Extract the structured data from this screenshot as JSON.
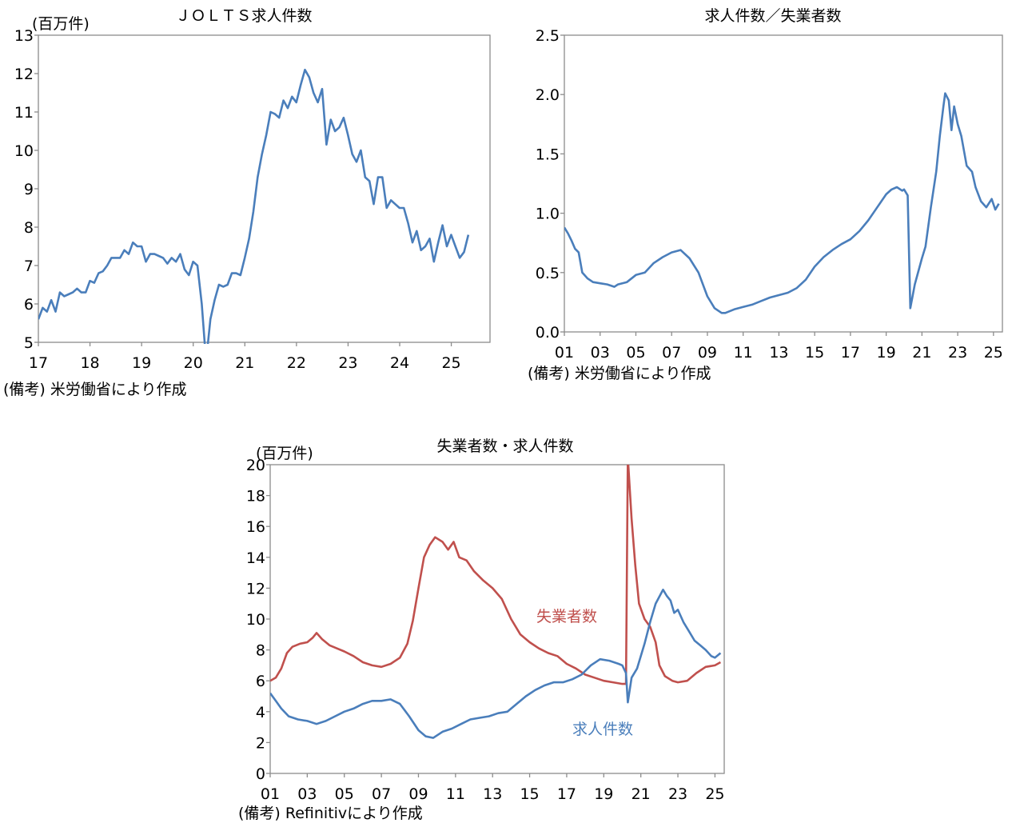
{
  "chart_data": [
    {
      "id": "jolts",
      "type": "line",
      "title": "ＪＯＬＴＳ求人件数",
      "unit_label": "(百万件)",
      "note": "(備考) 米労働省により作成",
      "x_tick_labels": [
        "17",
        "18",
        "19",
        "20",
        "21",
        "22",
        "23",
        "24",
        "25"
      ],
      "y_tick_labels": [
        "5",
        "6",
        "7",
        "8",
        "9",
        "10",
        "11",
        "12",
        "13"
      ],
      "ylim": [
        5,
        13
      ],
      "xlim": [
        2017.0,
        2025.75
      ],
      "color": "#4a7ebb",
      "series": [
        {
          "x_start": 2017.0,
          "x_step": 0.0833,
          "values": [
            5.6,
            5.9,
            5.8,
            6.1,
            5.8,
            6.3,
            6.2,
            6.25,
            6.3,
            6.4,
            6.3,
            6.3,
            6.6,
            6.55,
            6.8,
            6.85,
            7.0,
            7.2,
            7.2,
            7.2,
            7.4,
            7.3,
            7.6,
            7.5,
            7.5,
            7.1,
            7.3,
            7.3,
            7.25,
            7.2,
            7.05,
            7.2,
            7.1,
            7.3,
            6.9,
            6.75,
            7.1,
            7.0,
            6.0,
            4.5,
            5.6,
            6.1,
            6.5,
            6.45,
            6.5,
            6.8,
            6.8,
            6.75,
            7.2,
            7.7,
            8.4,
            9.3,
            9.9,
            10.4,
            11.0,
            10.95,
            10.85,
            11.3,
            11.1,
            11.4,
            11.25,
            11.7,
            12.1,
            11.9,
            11.5,
            11.25,
            11.6,
            10.15,
            10.8,
            10.5,
            10.6,
            10.85,
            10.4,
            9.9,
            9.7,
            10.0,
            9.3,
            9.2,
            8.6,
            9.3,
            9.3,
            8.5,
            8.7,
            8.6,
            8.5,
            8.5,
            8.1,
            7.6,
            7.9,
            7.4,
            7.5,
            7.7,
            7.1,
            7.6,
            8.05,
            7.5,
            7.8,
            7.5,
            7.2,
            7.35,
            7.8
          ]
        }
      ]
    },
    {
      "id": "ratio",
      "type": "line",
      "title": "求人件数／失業者数",
      "note": "(備考) 米労働省により作成",
      "x_tick_labels": [
        "01",
        "03",
        "05",
        "07",
        "09",
        "11",
        "13",
        "15",
        "17",
        "19",
        "21",
        "23",
        "25"
      ],
      "y_tick_labels": [
        "0.0",
        "0.5",
        "1.0",
        "1.5",
        "2.0",
        "2.5"
      ],
      "ylim": [
        0,
        2.5
      ],
      "xlim": [
        2001.0,
        2025.5
      ],
      "color": "#4a7ebb",
      "series": [
        {
          "points": [
            [
              2001.0,
              0.88
            ],
            [
              2001.2,
              0.83
            ],
            [
              2001.4,
              0.77
            ],
            [
              2001.6,
              0.7
            ],
            [
              2001.8,
              0.67
            ],
            [
              2002.0,
              0.5
            ],
            [
              2002.3,
              0.45
            ],
            [
              2002.6,
              0.42
            ],
            [
              2003.0,
              0.41
            ],
            [
              2003.4,
              0.4
            ],
            [
              2003.8,
              0.38
            ],
            [
              2004.0,
              0.4
            ],
            [
              2004.5,
              0.42
            ],
            [
              2005.0,
              0.48
            ],
            [
              2005.5,
              0.5
            ],
            [
              2006.0,
              0.58
            ],
            [
              2006.5,
              0.63
            ],
            [
              2007.0,
              0.67
            ],
            [
              2007.5,
              0.69
            ],
            [
              2008.0,
              0.62
            ],
            [
              2008.5,
              0.5
            ],
            [
              2009.0,
              0.3
            ],
            [
              2009.4,
              0.2
            ],
            [
              2009.8,
              0.16
            ],
            [
              2010.0,
              0.16
            ],
            [
              2010.5,
              0.19
            ],
            [
              2011.0,
              0.21
            ],
            [
              2011.5,
              0.23
            ],
            [
              2012.0,
              0.26
            ],
            [
              2012.5,
              0.29
            ],
            [
              2013.0,
              0.31
            ],
            [
              2013.5,
              0.33
            ],
            [
              2014.0,
              0.37
            ],
            [
              2014.5,
              0.44
            ],
            [
              2015.0,
              0.55
            ],
            [
              2015.5,
              0.63
            ],
            [
              2016.0,
              0.69
            ],
            [
              2016.5,
              0.74
            ],
            [
              2017.0,
              0.78
            ],
            [
              2017.5,
              0.85
            ],
            [
              2018.0,
              0.94
            ],
            [
              2018.5,
              1.05
            ],
            [
              2019.0,
              1.16
            ],
            [
              2019.3,
              1.2
            ],
            [
              2019.6,
              1.22
            ],
            [
              2019.9,
              1.19
            ],
            [
              2020.0,
              1.2
            ],
            [
              2020.2,
              1.15
            ],
            [
              2020.35,
              0.2
            ],
            [
              2020.6,
              0.4
            ],
            [
              2021.0,
              0.62
            ],
            [
              2021.2,
              0.72
            ],
            [
              2021.5,
              1.05
            ],
            [
              2021.8,
              1.35
            ],
            [
              2022.0,
              1.65
            ],
            [
              2022.2,
              1.9
            ],
            [
              2022.3,
              2.01
            ],
            [
              2022.5,
              1.95
            ],
            [
              2022.65,
              1.7
            ],
            [
              2022.8,
              1.9
            ],
            [
              2023.0,
              1.75
            ],
            [
              2023.2,
              1.65
            ],
            [
              2023.5,
              1.4
            ],
            [
              2023.8,
              1.35
            ],
            [
              2024.0,
              1.22
            ],
            [
              2024.3,
              1.1
            ],
            [
              2024.6,
              1.05
            ],
            [
              2024.9,
              1.12
            ],
            [
              2025.1,
              1.03
            ],
            [
              2025.3,
              1.08
            ]
          ]
        }
      ]
    },
    {
      "id": "unemp-openings",
      "type": "line",
      "title": "失業者数・求人件数",
      "unit_label": "(百万件)",
      "note": "(備考) Refinitivにより作成",
      "x_tick_labels": [
        "01",
        "03",
        "05",
        "07",
        "09",
        "11",
        "13",
        "15",
        "17",
        "19",
        "21",
        "23",
        "25"
      ],
      "y_tick_labels": [
        "0",
        "2",
        "4",
        "6",
        "8",
        "10",
        "12",
        "14",
        "16",
        "18",
        "20"
      ],
      "ylim": [
        0,
        20
      ],
      "xlim": [
        2001.0,
        2025.5
      ],
      "series": [
        {
          "name": "失業者数",
          "color": "#c0504d",
          "points": [
            [
              2001.0,
              6.0
            ],
            [
              2001.3,
              6.2
            ],
            [
              2001.6,
              6.8
            ],
            [
              2001.9,
              7.8
            ],
            [
              2002.2,
              8.2
            ],
            [
              2002.6,
              8.4
            ],
            [
              2003.0,
              8.5
            ],
            [
              2003.3,
              8.8
            ],
            [
              2003.5,
              9.1
            ],
            [
              2003.8,
              8.7
            ],
            [
              2004.2,
              8.3
            ],
            [
              2004.6,
              8.1
            ],
            [
              2005.0,
              7.9
            ],
            [
              2005.5,
              7.6
            ],
            [
              2006.0,
              7.2
            ],
            [
              2006.5,
              7.0
            ],
            [
              2007.0,
              6.9
            ],
            [
              2007.5,
              7.1
            ],
            [
              2008.0,
              7.5
            ],
            [
              2008.4,
              8.4
            ],
            [
              2008.7,
              9.9
            ],
            [
              2009.0,
              12.0
            ],
            [
              2009.3,
              14.0
            ],
            [
              2009.6,
              14.8
            ],
            [
              2009.9,
              15.3
            ],
            [
              2010.3,
              15.0
            ],
            [
              2010.6,
              14.5
            ],
            [
              2010.9,
              15.0
            ],
            [
              2011.2,
              14.0
            ],
            [
              2011.6,
              13.8
            ],
            [
              2012.0,
              13.1
            ],
            [
              2012.5,
              12.5
            ],
            [
              2013.0,
              12.0
            ],
            [
              2013.5,
              11.3
            ],
            [
              2014.0,
              10.0
            ],
            [
              2014.5,
              9.0
            ],
            [
              2015.0,
              8.5
            ],
            [
              2015.5,
              8.1
            ],
            [
              2016.0,
              7.8
            ],
            [
              2016.5,
              7.6
            ],
            [
              2017.0,
              7.1
            ],
            [
              2017.5,
              6.8
            ],
            [
              2018.0,
              6.4
            ],
            [
              2018.5,
              6.2
            ],
            [
              2019.0,
              6.0
            ],
            [
              2019.5,
              5.9
            ],
            [
              2020.0,
              5.8
            ],
            [
              2020.2,
              5.8
            ],
            [
              2020.3,
              20.5
            ],
            [
              2020.5,
              16.5
            ],
            [
              2020.7,
              13.5
            ],
            [
              2020.9,
              11.0
            ],
            [
              2021.2,
              10.0
            ],
            [
              2021.5,
              9.5
            ],
            [
              2021.8,
              8.5
            ],
            [
              2022.0,
              7.0
            ],
            [
              2022.3,
              6.3
            ],
            [
              2022.7,
              6.0
            ],
            [
              2023.0,
              5.9
            ],
            [
              2023.5,
              6.0
            ],
            [
              2024.0,
              6.5
            ],
            [
              2024.5,
              6.9
            ],
            [
              2025.0,
              7.0
            ],
            [
              2025.3,
              7.2
            ]
          ]
        },
        {
          "name": "求人件数",
          "color": "#4a7ebb",
          "points": [
            [
              2001.0,
              5.2
            ],
            [
              2001.3,
              4.7
            ],
            [
              2001.6,
              4.2
            ],
            [
              2002.0,
              3.7
            ],
            [
              2002.5,
              3.5
            ],
            [
              2003.0,
              3.4
            ],
            [
              2003.5,
              3.2
            ],
            [
              2004.0,
              3.4
            ],
            [
              2004.5,
              3.7
            ],
            [
              2005.0,
              4.0
            ],
            [
              2005.5,
              4.2
            ],
            [
              2006.0,
              4.5
            ],
            [
              2006.5,
              4.7
            ],
            [
              2007.0,
              4.7
            ],
            [
              2007.5,
              4.8
            ],
            [
              2008.0,
              4.5
            ],
            [
              2008.5,
              3.7
            ],
            [
              2009.0,
              2.8
            ],
            [
              2009.4,
              2.4
            ],
            [
              2009.8,
              2.3
            ],
            [
              2010.3,
              2.7
            ],
            [
              2010.8,
              2.9
            ],
            [
              2011.3,
              3.2
            ],
            [
              2011.8,
              3.5
            ],
            [
              2012.3,
              3.6
            ],
            [
              2012.8,
              3.7
            ],
            [
              2013.3,
              3.9
            ],
            [
              2013.8,
              4.0
            ],
            [
              2014.3,
              4.5
            ],
            [
              2014.8,
              5.0
            ],
            [
              2015.3,
              5.4
            ],
            [
              2015.8,
              5.7
            ],
            [
              2016.3,
              5.9
            ],
            [
              2016.8,
              5.9
            ],
            [
              2017.3,
              6.1
            ],
            [
              2017.8,
              6.4
            ],
            [
              2018.3,
              7.0
            ],
            [
              2018.8,
              7.4
            ],
            [
              2019.3,
              7.3
            ],
            [
              2019.8,
              7.1
            ],
            [
              2020.0,
              7.0
            ],
            [
              2020.2,
              6.5
            ],
            [
              2020.3,
              4.6
            ],
            [
              2020.5,
              6.2
            ],
            [
              2020.8,
              6.8
            ],
            [
              2021.2,
              8.4
            ],
            [
              2021.5,
              9.8
            ],
            [
              2021.8,
              11.0
            ],
            [
              2022.2,
              11.9
            ],
            [
              2022.4,
              11.5
            ],
            [
              2022.6,
              11.2
            ],
            [
              2022.8,
              10.4
            ],
            [
              2023.0,
              10.6
            ],
            [
              2023.3,
              9.8
            ],
            [
              2023.6,
              9.2
            ],
            [
              2023.9,
              8.6
            ],
            [
              2024.2,
              8.3
            ],
            [
              2024.5,
              8.0
            ],
            [
              2024.8,
              7.6
            ],
            [
              2025.0,
              7.5
            ],
            [
              2025.3,
              7.8
            ]
          ]
        }
      ],
      "series_labels": [
        "失業者数",
        "求人件数"
      ]
    }
  ]
}
